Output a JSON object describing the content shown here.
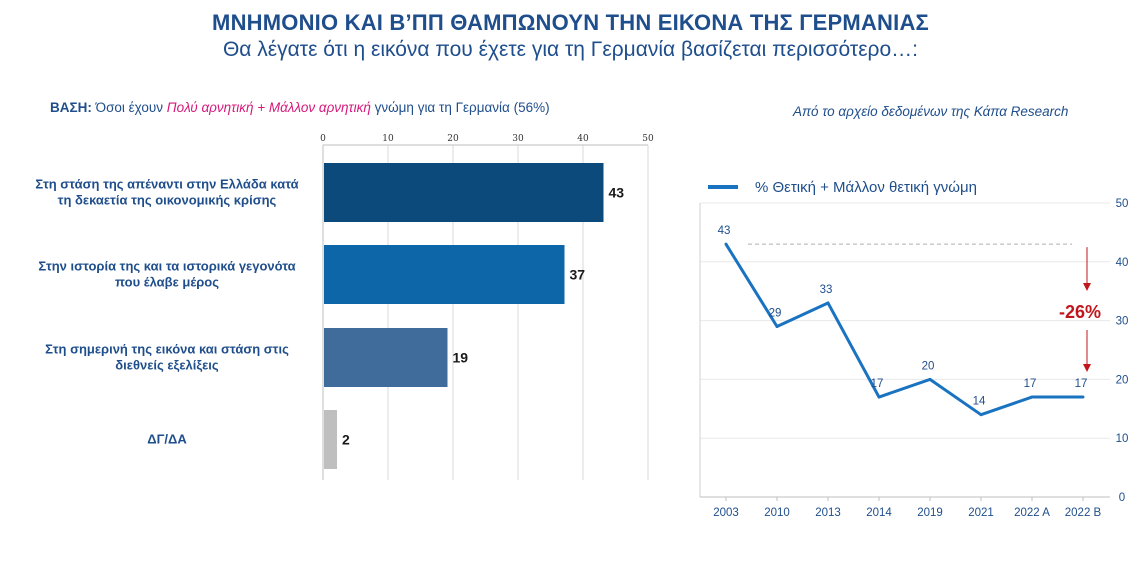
{
  "header": {
    "title": "ΜΝΗΜΟΝΙΟ ΚΑΙ Β’ΠΠ ΘΑΜΠΩΝΟΥΝ ΤΗΝ ΕΙΚΟΝΑ ΤΗΣ ΓΕΡΜΑΝΙΑΣ",
    "subtitle": "Θα λέγατε ότι η εικόνα που έχετε για τη Γερμανία βασίζεται περισσότερο…:"
  },
  "base": {
    "prefix": "ΒΑΣΗ:",
    "text1": " Όσοι έχουν ",
    "highlight": "Πολύ αρνητική + Μάλλον αρνητική",
    "text2": " γνώμη για τη Γερμανία (56%)"
  },
  "source": "Από το αρχείο δεδομένων της Κάπα Research",
  "colors": {
    "bar1": "#0b4a7a",
    "bar2": "#0d66a8",
    "bar3": "#3f6c9b",
    "bar4": "#bfbfbf",
    "line": "#1a73c0",
    "arrow": "#c0171c"
  },
  "chart_data": [
    {
      "type": "bar",
      "orientation": "horizontal",
      "categories": [
        [
          "Στη στάση της απέναντι στην Ελλάδα κατά",
          "τη δεκαετία της οικονομικής κρίσης"
        ],
        [
          "Στην ιστορία της και τα ιστορικά γεγονότα",
          "που έλαβε μέρος"
        ],
        [
          "Στη σημερινή της εικόνα και στάση στις",
          "διεθνείς εξελίξεις"
        ],
        [
          "ΔΓ/ΔΑ"
        ]
      ],
      "values": [
        43,
        37,
        19,
        2
      ],
      "xlim": [
        0,
        50
      ],
      "xticks": [
        0,
        10,
        20,
        30,
        40,
        50
      ],
      "axis_position": "top",
      "grid": true
    },
    {
      "type": "line",
      "categories": [
        "2003",
        "2010",
        "2013",
        "2014",
        "2019",
        "2021",
        "2022 Α",
        "2022 Β"
      ],
      "series": [
        {
          "name": "% Θετική + Μάλλον θετική γνώμη",
          "values": [
            43,
            29,
            33,
            17,
            20,
            14,
            17,
            17
          ]
        }
      ],
      "ylim": [
        0,
        50
      ],
      "yticks": [
        0,
        10,
        20,
        30,
        40,
        50
      ],
      "y_axis_position": "right",
      "grid": true,
      "legend_position": "top-left",
      "annotation": "-26%"
    }
  ]
}
